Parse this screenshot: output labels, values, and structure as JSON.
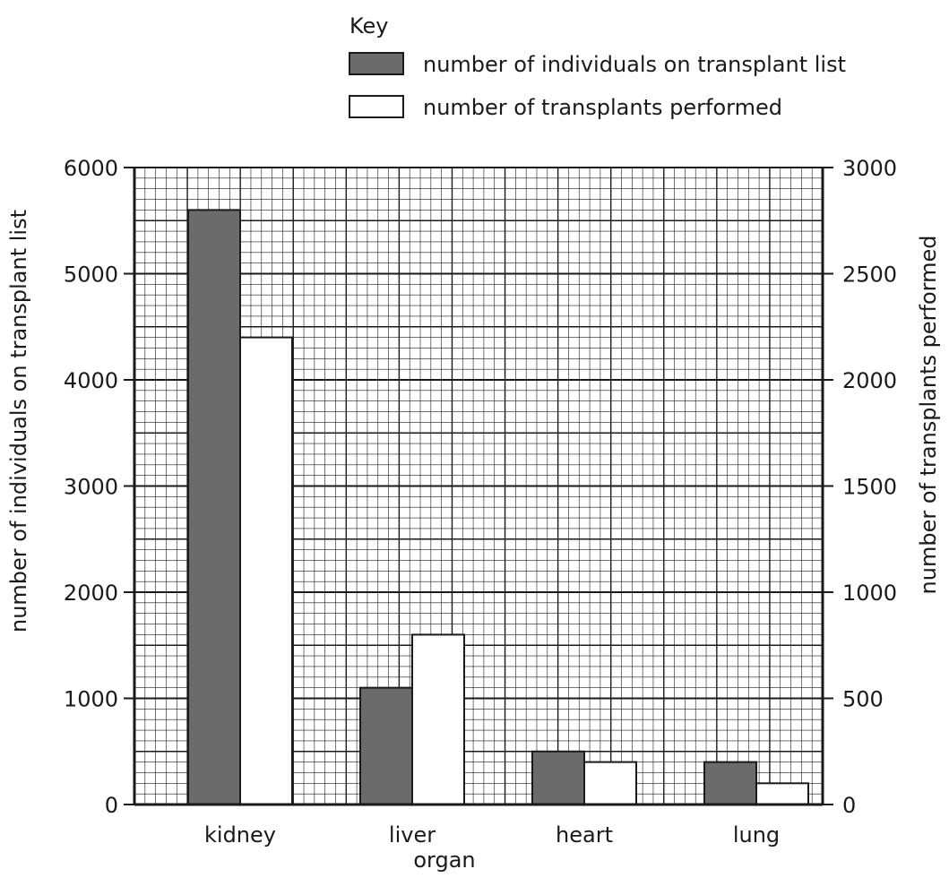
{
  "chart_data": {
    "type": "bar",
    "title": "",
    "legend": {
      "title": "Key",
      "placement": "top-right"
    },
    "categories": [
      "kidney",
      "liver",
      "heart",
      "lung"
    ],
    "xlabel": "organ",
    "ylabel_left": "number of individuals on transplant list",
    "ylabel_right": "number of transplants performed",
    "ylim_left": [
      0,
      6000
    ],
    "ylim_right": [
      0,
      3000
    ],
    "yticks_left": [
      "0",
      "1000",
      "2000",
      "3000",
      "4000",
      "5000",
      "6000"
    ],
    "yticks_right": [
      "0",
      "500",
      "1000",
      "1500",
      "2000",
      "2500",
      "3000"
    ],
    "grid": true,
    "series": [
      {
        "name": "number of individuals on transplant list",
        "axis": "left",
        "color": "#6b6b6e",
        "values": [
          5600,
          1100,
          500,
          400
        ]
      },
      {
        "name": "number of transplants performed",
        "axis": "right",
        "color": "#ffffff",
        "values": [
          2200,
          800,
          200,
          100
        ]
      }
    ]
  }
}
